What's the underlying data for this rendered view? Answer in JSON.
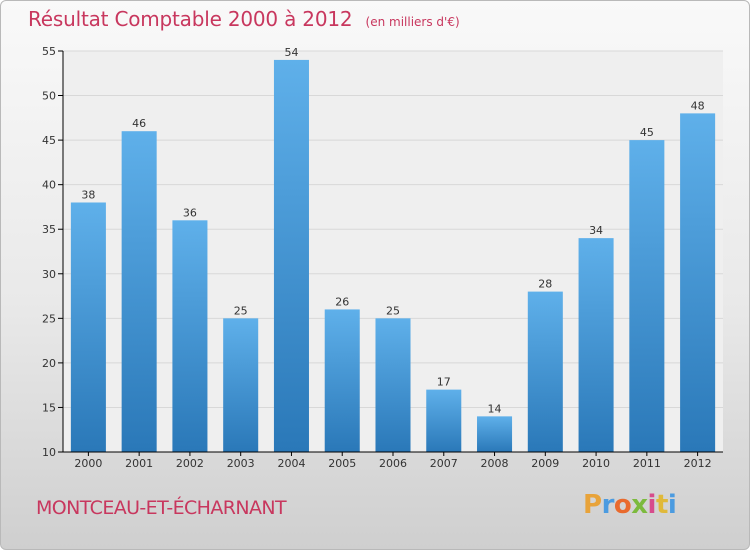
{
  "header": {
    "title": "Résultat Comptable 2000 à 2012",
    "subtitle": "(en milliers d'€)"
  },
  "footer": {
    "city": "MONTCEAU-ET-ÉCHARNANT",
    "logo_letters": [
      "P",
      "r",
      "o",
      "x",
      "i",
      "t",
      "i"
    ],
    "logo_colors": [
      "#e8a33a",
      "#4b9be0",
      "#e96a2d",
      "#7cba3d",
      "#d74c8c",
      "#e0b93a",
      "#4b9be0"
    ]
  },
  "colors": {
    "title": "#c8375e",
    "bar_top": "#5fb0ea",
    "bar_bottom": "#2a78b8",
    "plot_bg": "#efefef",
    "grid": "#d8d8d8",
    "axis": "#000000"
  },
  "chart_data": {
    "type": "bar",
    "title": "Résultat Comptable 2000 à 2012",
    "subtitle": "(en milliers d'€)",
    "categories": [
      "2000",
      "2001",
      "2002",
      "2003",
      "2004",
      "2005",
      "2006",
      "2007",
      "2008",
      "2009",
      "2010",
      "2011",
      "2012"
    ],
    "values": [
      38,
      46,
      36,
      25,
      54,
      26,
      25,
      17,
      14,
      28,
      34,
      45,
      48
    ],
    "xlabel": "",
    "ylabel": "",
    "ylim": [
      10,
      55
    ],
    "yticks": [
      10,
      15,
      20,
      25,
      30,
      35,
      40,
      45,
      50,
      55
    ],
    "grid": true,
    "data_labels": true
  }
}
